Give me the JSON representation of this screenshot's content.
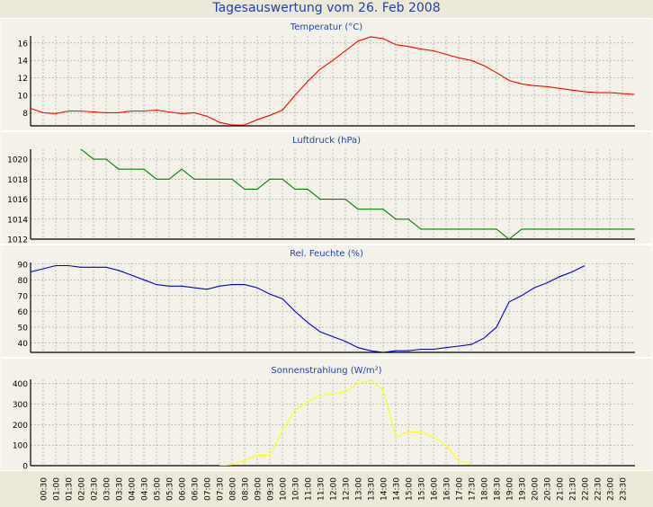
{
  "page": {
    "title": "Tagesauswertung vom 26. Feb 2008"
  },
  "x_labels": [
    "00:30",
    "01:00",
    "01:30",
    "02:00",
    "02:30",
    "03:00",
    "03:30",
    "04:00",
    "04:30",
    "05:00",
    "05:30",
    "06:00",
    "06:30",
    "07:00",
    "07:30",
    "08:00",
    "08:30",
    "09:00",
    "09:30",
    "10:00",
    "10:30",
    "11:00",
    "11:30",
    "12:00",
    "12:30",
    "13:00",
    "13:30",
    "14:00",
    "14:30",
    "15:00",
    "15:30",
    "16:00",
    "16:30",
    "17:00",
    "17:30",
    "18:00",
    "18:30",
    "19:00",
    "19:30",
    "20:00",
    "20:30",
    "21:00",
    "21:30",
    "22:00",
    "22:30",
    "23:00",
    "23:30"
  ],
  "chart_data": [
    {
      "type": "line",
      "title": "Temperatur (°C)",
      "color": "#ff0000",
      "ylim": [
        6.5,
        16.8
      ],
      "yticks": [
        8,
        10,
        12,
        14,
        16
      ],
      "grid": true,
      "x": [
        "00:00",
        "00:30",
        "01:00",
        "01:30",
        "02:00",
        "02:30",
        "03:00",
        "03:30",
        "04:00",
        "04:30",
        "05:00",
        "05:30",
        "06:00",
        "06:30",
        "07:00",
        "07:30",
        "08:00",
        "08:30",
        "09:00",
        "09:30",
        "10:00",
        "10:30",
        "11:00",
        "11:30",
        "12:00",
        "12:30",
        "13:00",
        "13:30",
        "14:00",
        "14:30",
        "15:00",
        "15:30",
        "16:00",
        "16:30",
        "17:00",
        "17:30",
        "18:00",
        "18:30",
        "19:00",
        "19:30",
        "20:00",
        "20:30",
        "21:00",
        "21:30",
        "22:00",
        "22:30",
        "23:00",
        "23:30",
        "23:59"
      ],
      "values": [
        8.5,
        8.0,
        7.9,
        8.2,
        8.2,
        8.1,
        8.0,
        8.0,
        8.2,
        8.2,
        8.3,
        8.1,
        7.9,
        8.0,
        7.6,
        6.9,
        6.6,
        6.6,
        7.2,
        7.7,
        8.3,
        10.0,
        11.6,
        13.0,
        14.0,
        15.1,
        16.2,
        16.7,
        16.5,
        15.8,
        15.6,
        15.3,
        15.1,
        14.7,
        14.3,
        14.0,
        13.4,
        12.6,
        11.7,
        11.3,
        11.1,
        11.0,
        10.8,
        10.6,
        10.4,
        10.3,
        10.3,
        10.2,
        10.1
      ]
    },
    {
      "type": "line",
      "title": "Luftdruck (hPa)",
      "color": "#008000",
      "ylim": [
        1012,
        1021
      ],
      "yticks": [
        1012,
        1014,
        1016,
        1018,
        1020
      ],
      "grid": true,
      "x": [
        "02:00",
        "02:30",
        "03:00",
        "03:30",
        "04:00",
        "04:30",
        "05:00",
        "05:30",
        "06:00",
        "06:30",
        "07:00",
        "07:30",
        "08:00",
        "08:30",
        "09:00",
        "09:30",
        "10:00",
        "10:30",
        "11:00",
        "11:30",
        "12:00",
        "12:30",
        "13:00",
        "13:30",
        "14:00",
        "14:30",
        "15:00",
        "15:30",
        "16:00",
        "16:30",
        "17:00",
        "17:30",
        "18:00",
        "18:30",
        "19:00",
        "19:30",
        "20:00",
        "20:30",
        "21:00",
        "21:30",
        "22:00",
        "22:30",
        "23:00",
        "23:30",
        "23:59"
      ],
      "values": [
        1021,
        1020,
        1020,
        1019,
        1019,
        1019,
        1018,
        1018,
        1019,
        1018,
        1018,
        1018,
        1018,
        1017,
        1017,
        1018,
        1018,
        1017,
        1017,
        1016,
        1016,
        1016,
        1015,
        1015,
        1015,
        1014,
        1014,
        1013,
        1013,
        1013,
        1013,
        1013,
        1013,
        1013,
        1012,
        1013,
        1013,
        1013,
        1013,
        1013,
        1013,
        1013,
        1013,
        1013,
        1013
      ]
    },
    {
      "type": "line",
      "title": "Rel. Feuchte (%)",
      "color": "#0000cc",
      "ylim": [
        34,
        91
      ],
      "yticks": [
        40,
        50,
        60,
        70,
        80,
        90
      ],
      "grid": true,
      "x": [
        "00:00",
        "00:30",
        "01:00",
        "01:30",
        "02:00",
        "02:30",
        "03:00",
        "03:30",
        "04:00",
        "04:30",
        "05:00",
        "05:30",
        "06:00",
        "06:30",
        "07:00",
        "07:30",
        "08:00",
        "08:30",
        "09:00",
        "09:30",
        "10:00",
        "10:30",
        "11:00",
        "11:30",
        "12:00",
        "12:30",
        "13:00",
        "13:30",
        "14:00",
        "14:30",
        "15:00",
        "15:30",
        "16:00",
        "16:30",
        "17:00",
        "17:30",
        "18:00",
        "18:30",
        "19:00",
        "19:30",
        "20:00",
        "20:30",
        "21:00",
        "21:30",
        "22:00"
      ],
      "values": [
        85,
        87,
        89,
        89,
        88,
        88,
        88,
        86,
        83,
        80,
        77,
        76,
        76,
        75,
        74,
        76,
        77,
        77,
        75,
        71,
        68,
        60,
        53,
        47,
        44,
        41,
        37,
        35,
        34,
        35,
        35,
        36,
        36,
        37,
        38,
        39,
        43,
        50,
        66,
        70,
        75,
        78,
        82,
        85,
        89
      ]
    },
    {
      "type": "line",
      "title": "Sonnenstrahlung (W/m²)",
      "color": "#ffff00",
      "ylim": [
        0,
        420
      ],
      "yticks": [
        0,
        100,
        200,
        300,
        400
      ],
      "grid": true,
      "x": [
        "07:30",
        "08:00",
        "08:30",
        "09:00",
        "09:30",
        "10:00",
        "10:30",
        "11:00",
        "11:30",
        "12:00",
        "12:30",
        "13:00",
        "13:30",
        "14:00",
        "14:30",
        "15:00",
        "15:30",
        "16:00",
        "16:30",
        "17:00",
        "17:30"
      ],
      "values": [
        0,
        5,
        25,
        50,
        50,
        170,
        270,
        310,
        340,
        350,
        360,
        400,
        415,
        370,
        140,
        165,
        165,
        140,
        100,
        25,
        5
      ]
    }
  ]
}
